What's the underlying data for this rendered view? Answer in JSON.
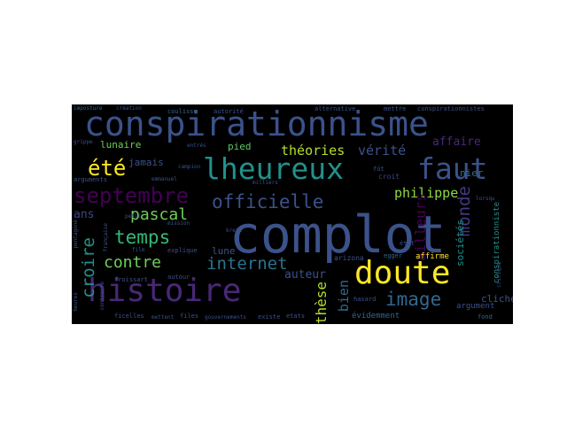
{
  "cloud": {
    "background": "#000000",
    "words": [
      {
        "text": "complot",
        "color": "#3b528b"
      },
      {
        "text": "conspirationnisme",
        "color": "#3b528b"
      },
      {
        "text": "lheureux",
        "color": "#21918c"
      },
      {
        "text": "histoire",
        "color": "#482878"
      },
      {
        "text": "doute",
        "color": "#fde725"
      },
      {
        "text": "faut",
        "color": "#3b528b"
      },
      {
        "text": "septembre",
        "color": "#440154"
      },
      {
        "text": "officielle",
        "color": "#3b528b"
      },
      {
        "text": "temps",
        "color": "#35b779"
      },
      {
        "text": "été",
        "color": "#fde725"
      },
      {
        "text": "internet",
        "color": "#2c728e"
      },
      {
        "text": "image",
        "color": "#31688e"
      },
      {
        "text": "croire",
        "color": "#21918c"
      },
      {
        "text": "monde",
        "color": "#443983"
      },
      {
        "text": "contre",
        "color": "#6ece58"
      },
      {
        "text": "pascal",
        "color": "#6ece58"
      },
      {
        "text": "philippe",
        "color": "#90d743"
      },
      {
        "text": "théories",
        "color": "#b5de2b"
      },
      {
        "text": "vérité",
        "color": "#3b528b"
      },
      {
        "text": "thèse",
        "color": "#b5de2b"
      },
      {
        "text": "ailleurs",
        "color": "#440154"
      },
      {
        "text": "auteur",
        "color": "#3b528b"
      },
      {
        "text": "affaire",
        "color": "#482878"
      },
      {
        "text": "bien",
        "color": "#31688e"
      },
      {
        "text": "ans",
        "color": "#414487"
      },
      {
        "text": "lune",
        "color": "#3b528b"
      },
      {
        "text": "pied",
        "color": "#5ec962"
      },
      {
        "text": "lunaire",
        "color": "#6ece58"
      },
      {
        "text": "jamais",
        "color": "#3b528b"
      },
      {
        "text": "clichés",
        "color": "#3b528b"
      },
      {
        "text": "sociétés",
        "color": "#21918c"
      },
      {
        "text": "nier",
        "color": "#31688e"
      },
      {
        "text": "argument",
        "color": "#3b528b"
      },
      {
        "text": "évidemment",
        "color": "#31688e"
      },
      {
        "text": "affirme",
        "color": "#fde725"
      },
      {
        "text": "conspirationniste",
        "color": "#21918c"
      },
      {
        "text": "arizona",
        "color": "#3b528b"
      },
      {
        "text": "egger",
        "color": "#31688e"
      },
      {
        "text": "croit",
        "color": "#414487"
      },
      {
        "text": "hasard",
        "color": "#3b528b"
      },
      {
        "text": "état",
        "color": "#3b528b"
      },
      {
        "text": "fond",
        "color": "#31688e"
      },
      {
        "text": "imposture",
        "color": "#31688e"
      },
      {
        "text": "création",
        "color": "#3b528b"
      },
      {
        "text": "coulisse",
        "color": "#31688e"
      },
      {
        "text": "autorité",
        "color": "#3b528b"
      },
      {
        "text": "alternative",
        "color": "#3b528b"
      },
      {
        "text": "mettre",
        "color": "#3b528b"
      },
      {
        "text": "conspirationnistes",
        "color": "#3b528b"
      },
      {
        "text": "grippe",
        "color": "#3b528b"
      },
      {
        "text": "entrés",
        "color": "#3b528b"
      },
      {
        "text": "campion",
        "color": "#3b528b"
      },
      {
        "text": "arguments",
        "color": "#3b528b"
      },
      {
        "text": "emmanuel",
        "color": "#3b528b"
      },
      {
        "text": "milliers",
        "color": "#3b528b"
      },
      {
        "text": "fût",
        "color": "#3b528b"
      },
      {
        "text": "mission",
        "color": "#3b528b"
      },
      {
        "text": "kreis",
        "color": "#3b528b"
      },
      {
        "text": "petit",
        "color": "#3b528b"
      },
      {
        "text": "explique",
        "color": "#3b528b"
      },
      {
        "text": "film",
        "color": "#3b528b"
      },
      {
        "text": "française",
        "color": "#3b528b"
      },
      {
        "text": "froissart",
        "color": "#3b528b"
      },
      {
        "text": "autour",
        "color": "#3b528b"
      },
      {
        "text": "contraire",
        "color": "#3b528b"
      },
      {
        "text": "ficelles",
        "color": "#3b528b"
      },
      {
        "text": "mettent",
        "color": "#3b528b"
      },
      {
        "text": "files",
        "color": "#3b528b"
      },
      {
        "text": "gouvernements",
        "color": "#3b528b"
      },
      {
        "text": "existe",
        "color": "#3b528b"
      },
      {
        "text": "etats",
        "color": "#3b528b"
      },
      {
        "text": "pentagone",
        "color": "#3b528b"
      },
      {
        "text": "heures",
        "color": "#3b528b"
      },
      {
        "text": "critique",
        "color": "#3b528b"
      },
      {
        "text": "lorsqu",
        "color": "#3b528b"
      }
    ]
  }
}
